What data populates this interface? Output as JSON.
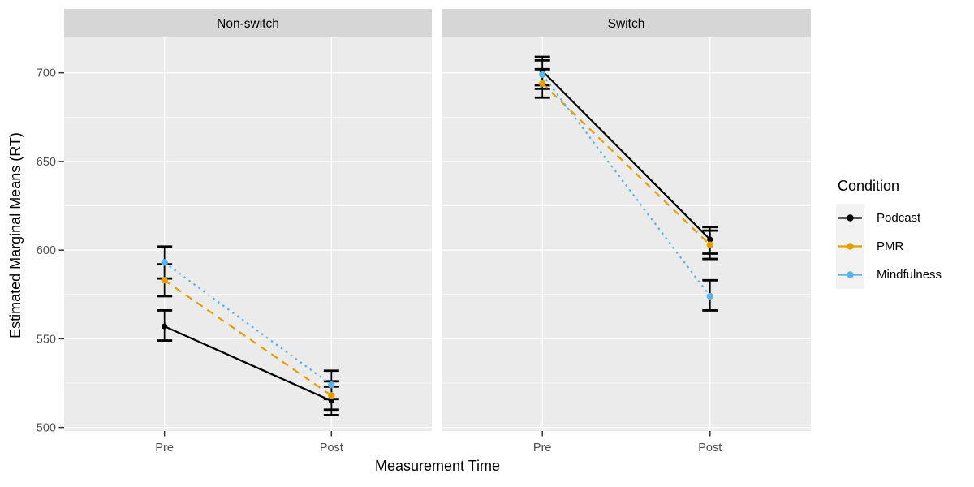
{
  "chart_data": {
    "type": "line",
    "title": "",
    "xlabel": "Measurement Time",
    "ylabel": "Estimated Marginal Means (RT)",
    "categories": [
      "Pre",
      "Post"
    ],
    "yticks": [
      500,
      550,
      600,
      650,
      700
    ],
    "ylim": [
      498,
      720
    ],
    "grid": "on",
    "legend_position": "right",
    "facets": [
      {
        "label": "Non-switch",
        "series": [
          {
            "name": "Podcast",
            "values": [
              557,
              515
            ],
            "ci_low": [
              549,
              507
            ],
            "ci_high": [
              566,
              523
            ]
          },
          {
            "name": "PMR",
            "values": [
              583,
              518
            ],
            "ci_low": [
              574,
              510
            ],
            "ci_high": [
              592,
              526
            ]
          },
          {
            "name": "Mindfulness",
            "values": [
              593,
              524
            ],
            "ci_low": [
              584,
              516
            ],
            "ci_high": [
              602,
              532
            ]
          }
        ]
      },
      {
        "label": "Switch",
        "series": [
          {
            "name": "Podcast",
            "values": [
              701,
              606
            ],
            "ci_low": [
              693,
              598
            ],
            "ci_high": [
              709,
              613
            ]
          },
          {
            "name": "PMR",
            "values": [
              694,
              603
            ],
            "ci_low": [
              686,
              595
            ],
            "ci_high": [
              702,
              611
            ]
          },
          {
            "name": "Mindfulness",
            "values": [
              699,
              574
            ],
            "ci_low": [
              691,
              566
            ],
            "ci_high": [
              707,
              583
            ]
          }
        ]
      }
    ],
    "legend": {
      "title": "Condition",
      "entries": [
        {
          "label": "Podcast",
          "color": "#000000",
          "linetype": "solid"
        },
        {
          "label": "PMR",
          "color": "#E69F00",
          "linetype": "dashed"
        },
        {
          "label": "Mindfulness",
          "color": "#56B4E9",
          "linetype": "dotted"
        }
      ]
    },
    "colors": {
      "panel_bg": "#EBEBEB",
      "strip_bg": "#D6D6D6",
      "gridline": "#FFFFFF",
      "error_bar": "#000000",
      "axis_tick_text": "#4D4D4D",
      "axis_tick_mark": "#333333",
      "legend_key_bg": "#F2F2F2",
      "text": "#000000",
      "background": "#FFFFFF"
    }
  }
}
